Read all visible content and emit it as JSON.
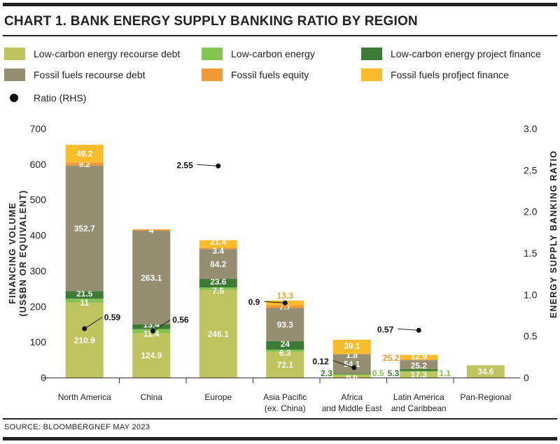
{
  "title": "CHART 1. BANK ENERGY SUPPLY BANKING RATIO BY REGION",
  "source": "SOURCE: BLOOMBERGNEF MAY 2023",
  "chart_data": {
    "type": "bar",
    "stacked": true,
    "categories": [
      "North America",
      "China",
      "Europe",
      "Asia Pacific\n(ex. China)",
      "Africa\nand Middle East",
      "Latin America\nand Caribbean",
      "Pan-Regional"
    ],
    "ylabel": "FINANCING VOLUME\n(US$BN OR EQUIVALENT)",
    "y2label": "ENERGY SUPPLY BANKING RATIO",
    "ylim": [
      0,
      700
    ],
    "yticks": [
      0,
      100,
      200,
      300,
      400,
      500,
      600,
      700
    ],
    "y2lim": [
      0,
      3.0
    ],
    "y2ticks": [
      "0",
      "0.5",
      "1.0",
      "1.5",
      "2.0",
      "2.5",
      "3.0"
    ],
    "grid": false,
    "legend_position": "top",
    "series": [
      {
        "name": "Low-carbon energy recourse debt",
        "color": "#c0c45e",
        "values": [
          210.9,
          124.9,
          246.1,
          72.1,
          8.6,
          17.3,
          34.6
        ]
      },
      {
        "name": "Low-carbon energy",
        "color": "#84c450",
        "values": [
          11,
          11.4,
          7.5,
          6.3,
          0.5,
          1.1,
          null
        ]
      },
      {
        "name": "Low-carbon energy project finance",
        "color": "#3d7a35",
        "values": [
          21.5,
          13.4,
          23.6,
          24,
          2.3,
          5.3,
          null
        ]
      },
      {
        "name": "Fossil fuels recourse debt",
        "color": "#958e70",
        "values": [
          352.7,
          263.1,
          84.2,
          93.3,
          54.1,
          25.2,
          null
        ]
      },
      {
        "name": "Fossil fuels equity",
        "color": "#f29a36",
        "values": [
          9.2,
          4,
          3.4,
          7.7,
          1.8,
          25.2,
          null
        ]
      },
      {
        "name": "Fossil fuels profject finance",
        "color": "#fbbc2c",
        "values": [
          49.2,
          null,
          21.4,
          13.3,
          39.1,
          12.9,
          null
        ]
      }
    ],
    "ratio_series": {
      "name": "Ratio (RHS)",
      "color": "#111111",
      "values": [
        0.59,
        0.56,
        2.55,
        0.9,
        0.12,
        0.57,
        null
      ]
    }
  }
}
